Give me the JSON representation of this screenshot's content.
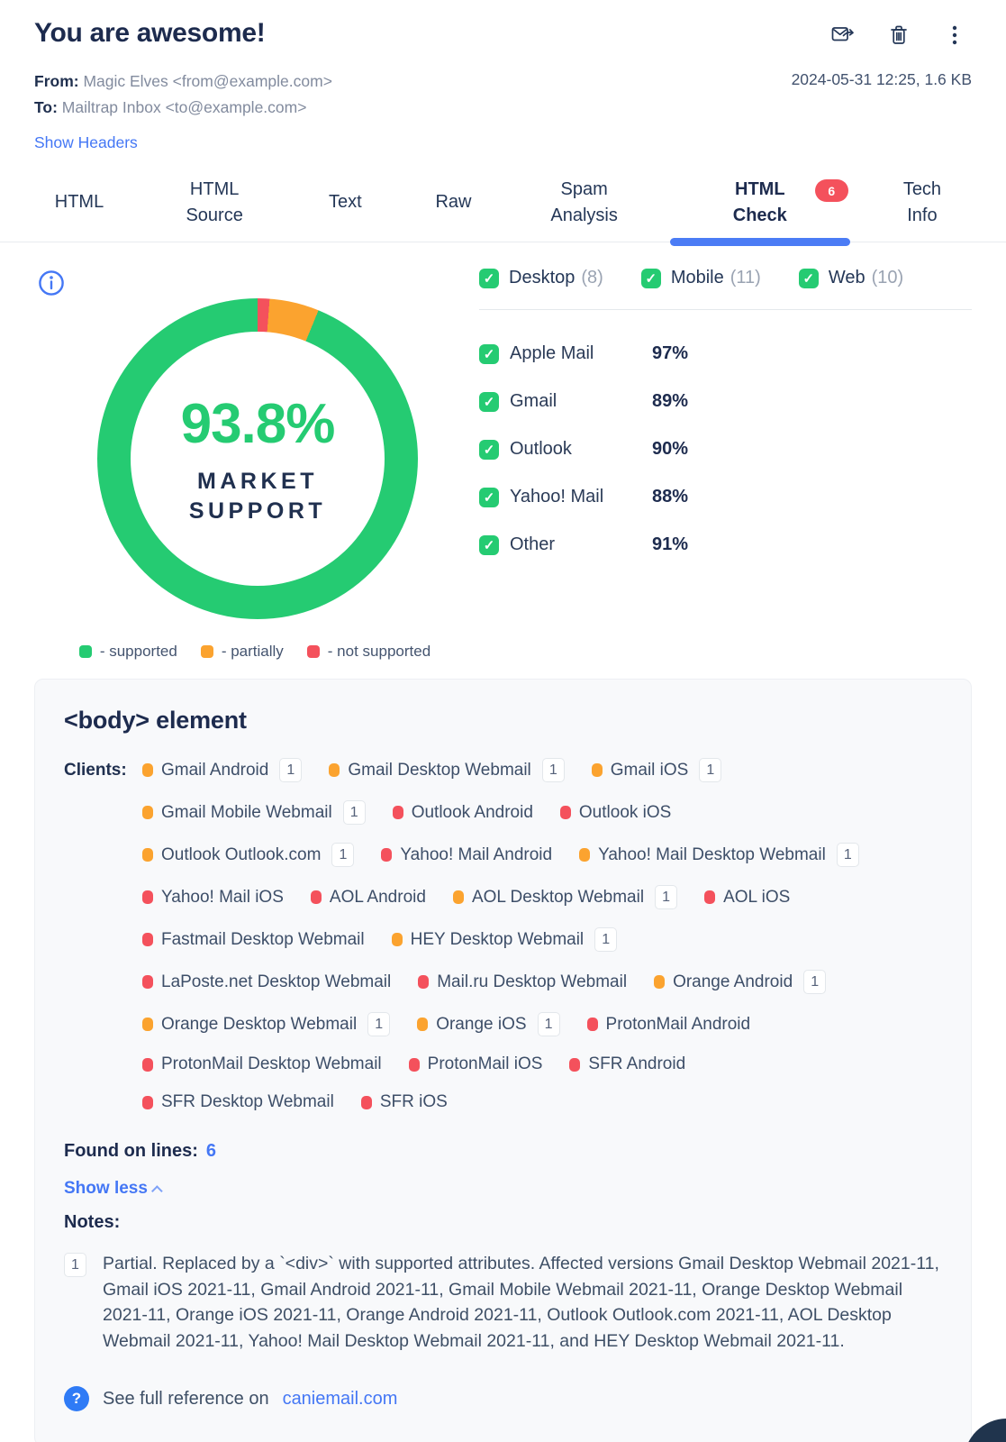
{
  "colors": {
    "green": "#25cb72",
    "orange": "#fba32f",
    "red": "#f4515c",
    "blue": "#4477f5",
    "navy": "#1d2b4e"
  },
  "header": {
    "title": "You are awesome!",
    "from_label": "From:",
    "from_value": "Magic Elves <from@example.com>",
    "to_label": "To:",
    "to_value": "Mailtrap Inbox <to@example.com>",
    "meta": "2024-05-31 12:25, 1.6 KB",
    "show_headers_label": "Show Headers",
    "action_icons": [
      "forward-email-icon",
      "delete-icon",
      "more-options-icon"
    ]
  },
  "tabs": [
    {
      "label": "HTML"
    },
    {
      "label": "HTML Source"
    },
    {
      "label": "Text"
    },
    {
      "label": "Raw"
    },
    {
      "label": "Spam Analysis"
    },
    {
      "label": "HTML Check",
      "active": true,
      "badge": "6"
    },
    {
      "label": "Tech Info"
    }
  ],
  "chart_data": {
    "type": "pie",
    "title": "MARKET SUPPORT",
    "center_value": "93.8%",
    "slices": [
      {
        "label": "not supported",
        "value": 1.2,
        "color": "#f4515c"
      },
      {
        "label": "partially",
        "value": 5.0,
        "color": "#fba32f"
      },
      {
        "label": "supported",
        "value": 93.8,
        "color": "#25cb72"
      }
    ],
    "legend": [
      {
        "label": "- supported",
        "color": "#25cb72"
      },
      {
        "label": "- partially",
        "color": "#fba32f"
      },
      {
        "label": "- not supported",
        "color": "#f4515c"
      }
    ],
    "legend_position": "bottom"
  },
  "filters": [
    {
      "label": "Desktop",
      "count": "(8)",
      "checked": true
    },
    {
      "label": "Mobile",
      "count": "(11)",
      "checked": true
    },
    {
      "label": "Web",
      "count": "(10)",
      "checked": true
    }
  ],
  "client_groups": [
    {
      "label": "Apple Mail",
      "percent": "97%",
      "checked": true
    },
    {
      "label": "Gmail",
      "percent": "89%",
      "checked": true
    },
    {
      "label": "Outlook",
      "percent": "90%",
      "checked": true
    },
    {
      "label": "Yahoo! Mail",
      "percent": "88%",
      "checked": true
    },
    {
      "label": "Other",
      "percent": "91%",
      "checked": true
    }
  ],
  "issue_card": {
    "title": "<body> element",
    "clients_label": "Clients:",
    "client_rows": [
      [
        {
          "name": "Gmail Android",
          "status": "partial",
          "note": "1"
        },
        {
          "name": "Gmail Desktop Webmail",
          "status": "partial",
          "note": "1"
        },
        {
          "name": "Gmail iOS",
          "status": "partial",
          "note": "1"
        }
      ],
      [
        {
          "name": "Gmail Mobile Webmail",
          "status": "partial",
          "note": "1"
        },
        {
          "name": "Outlook Android",
          "status": "none"
        },
        {
          "name": "Outlook iOS",
          "status": "none"
        }
      ],
      [
        {
          "name": "Outlook Outlook.com",
          "status": "partial",
          "note": "1"
        },
        {
          "name": "Yahoo! Mail Android",
          "status": "none"
        },
        {
          "name": "Yahoo! Mail Desktop Webmail",
          "status": "partial",
          "note": "1"
        }
      ],
      [
        {
          "name": "Yahoo! Mail iOS",
          "status": "none"
        },
        {
          "name": "AOL Android",
          "status": "none"
        },
        {
          "name": "AOL Desktop Webmail",
          "status": "partial",
          "note": "1"
        },
        {
          "name": "AOL iOS",
          "status": "none"
        }
      ],
      [
        {
          "name": "Fastmail Desktop Webmail",
          "status": "none"
        },
        {
          "name": "HEY Desktop Webmail",
          "status": "partial",
          "note": "1"
        }
      ],
      [
        {
          "name": "LaPoste.net Desktop Webmail",
          "status": "none"
        },
        {
          "name": "Mail.ru Desktop Webmail",
          "status": "none"
        },
        {
          "name": "Orange Android",
          "status": "partial",
          "note": "1"
        }
      ],
      [
        {
          "name": "Orange Desktop Webmail",
          "status": "partial",
          "note": "1"
        },
        {
          "name": "Orange iOS",
          "status": "partial",
          "note": "1"
        },
        {
          "name": "ProtonMail Android",
          "status": "none"
        }
      ],
      [
        {
          "name": "ProtonMail Desktop Webmail",
          "status": "none"
        },
        {
          "name": "ProtonMail iOS",
          "status": "none"
        },
        {
          "name": "SFR Android",
          "status": "none"
        }
      ],
      [
        {
          "name": "SFR Desktop Webmail",
          "status": "none"
        },
        {
          "name": "SFR iOS",
          "status": "none"
        }
      ]
    ],
    "found_on_lines_label": "Found on lines:",
    "found_on_lines": "6",
    "show_less_label": "Show less",
    "notes_label": "Notes:",
    "notes": [
      {
        "ref": "1",
        "text": "Partial. Replaced by a `<div>` with supported attributes. Affected versions Gmail Desktop Webmail 2021-11, Gmail iOS 2021-11, Gmail Android 2021-11, Gmail Mobile Webmail 2021-11, Orange Desktop Webmail 2021-11, Orange iOS 2021-11, Orange Android 2021-11, Outlook Outlook.com 2021-11, AOL Desktop Webmail 2021-11, Yahoo! Mail Desktop Webmail 2021-11, and HEY Desktop Webmail 2021-11."
      }
    ],
    "reference_text": "See full reference on",
    "reference_link": "caniemail.com"
  }
}
